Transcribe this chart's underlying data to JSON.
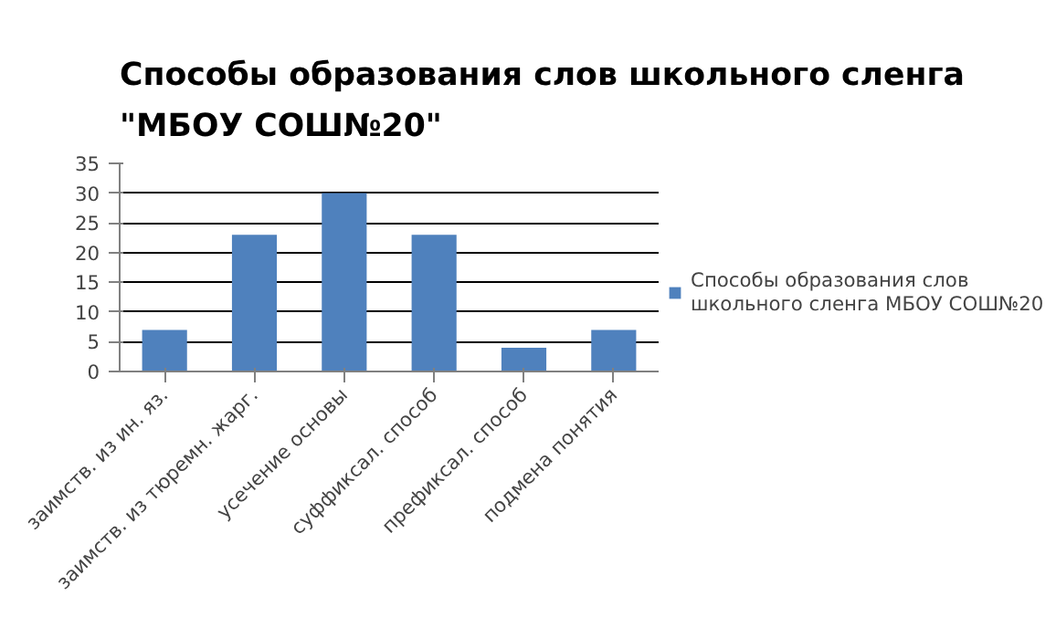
{
  "chart_data": {
    "type": "bar",
    "title": "Способы образования слов школьного сленга \"МБОУ СОШ№20\"",
    "categories": [
      "заимств. из ин. яз.",
      "заимств. из тюремн. жарг.",
      "усечение основы",
      "суффиксал. способ",
      "префиксал. способ",
      "подмена понятия"
    ],
    "series": [
      {
        "name": "Способы образования слов школьного сленга МБОУ СОШ№20",
        "color": "#4f81bd",
        "values": [
          7,
          23,
          30,
          23,
          4,
          7
        ]
      }
    ],
    "ylim": [
      0,
      35
    ],
    "yticks": [
      0,
      5,
      10,
      15,
      20,
      25,
      30,
      35
    ],
    "grid": "y",
    "legend": "right"
  }
}
